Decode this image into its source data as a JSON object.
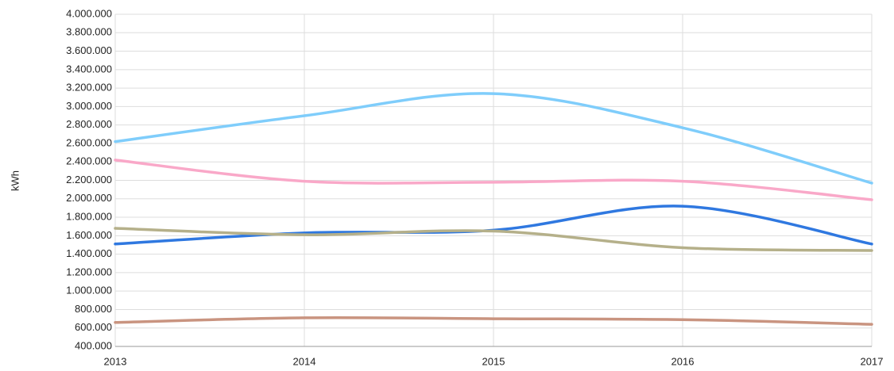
{
  "chart_data": {
    "type": "line",
    "ylabel": "kWh",
    "categories": [
      "2013",
      "2014",
      "2015",
      "2016",
      "2017"
    ],
    "series": [
      {
        "color": "#7fcdfb",
        "values": [
          2620000,
          2900000,
          3140000,
          2770000,
          2170000
        ]
      },
      {
        "color": "#f9a8c8",
        "values": [
          2420000,
          2190000,
          2180000,
          2190000,
          1990000
        ]
      },
      {
        "color": "#2f78e0",
        "values": [
          1510000,
          1630000,
          1660000,
          1920000,
          1510000
        ]
      },
      {
        "color": "#b5b08a",
        "values": [
          1680000,
          1610000,
          1650000,
          1470000,
          1440000
        ]
      },
      {
        "color": "#c99480",
        "values": [
          660000,
          710000,
          700000,
          690000,
          640000
        ]
      }
    ],
    "ylim": [
      400000,
      4000000
    ],
    "yticks": [
      {
        "value": 400000,
        "label": "400.000"
      },
      {
        "value": 600000,
        "label": "600.000"
      },
      {
        "value": 800000,
        "label": "800.000"
      },
      {
        "value": 1000000,
        "label": "1.000.000"
      },
      {
        "value": 1200000,
        "label": "1.200.000"
      },
      {
        "value": 1400000,
        "label": "1.400.000"
      },
      {
        "value": 1600000,
        "label": "1.600.000"
      },
      {
        "value": 1800000,
        "label": "1.800.000"
      },
      {
        "value": 2000000,
        "label": "2.000.000"
      },
      {
        "value": 2200000,
        "label": "2.200.000"
      },
      {
        "value": 2400000,
        "label": "2.400.000"
      },
      {
        "value": 2600000,
        "label": "2.600.000"
      },
      {
        "value": 2800000,
        "label": "2.800.000"
      },
      {
        "value": 3000000,
        "label": "3.000.000"
      },
      {
        "value": 3200000,
        "label": "3.200.000"
      },
      {
        "value": 3400000,
        "label": "3.400.000"
      },
      {
        "value": 3600000,
        "label": "3.600.000"
      },
      {
        "value": 3800000,
        "label": "3.800.000"
      },
      {
        "value": 4000000,
        "label": "4.000.000"
      }
    ],
    "grid": true
  }
}
